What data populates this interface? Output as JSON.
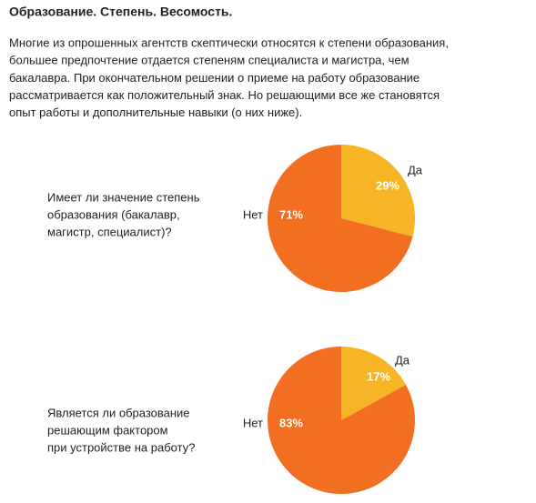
{
  "title": "Образование. Степень. Весомость.",
  "paragraph": [
    "Многие из опрошенных агентств скептически относятся к степени образования,",
    "большее предпочтение отдается степеням специалиста и магистра, чем",
    "бакалавра. При окончательном решении о приеме на работу образование",
    "рассматривается как положительный знак. Но решающими все же становятся",
    "опыт работы и дополнительные навыки (о них ниже)."
  ],
  "chart_data": [
    {
      "type": "pie",
      "title": [
        "Имеет ли значение степень",
        "образования (бакалавр,",
        "магистр, специалист)?"
      ],
      "categories": [
        "Да",
        "Нет"
      ],
      "values": [
        29,
        71
      ],
      "value_labels": [
        "29%",
        "71%"
      ],
      "colors": [
        "#f7b526",
        "#f26f21"
      ]
    },
    {
      "type": "pie",
      "title": [
        "Является ли образование",
        "решающим фактором",
        "при устройстве на работу?"
      ],
      "categories": [
        "Да",
        "Нет"
      ],
      "values": [
        17,
        83
      ],
      "value_labels": [
        "17%",
        "83%"
      ],
      "colors": [
        "#f7b526",
        "#f26f21"
      ]
    }
  ]
}
